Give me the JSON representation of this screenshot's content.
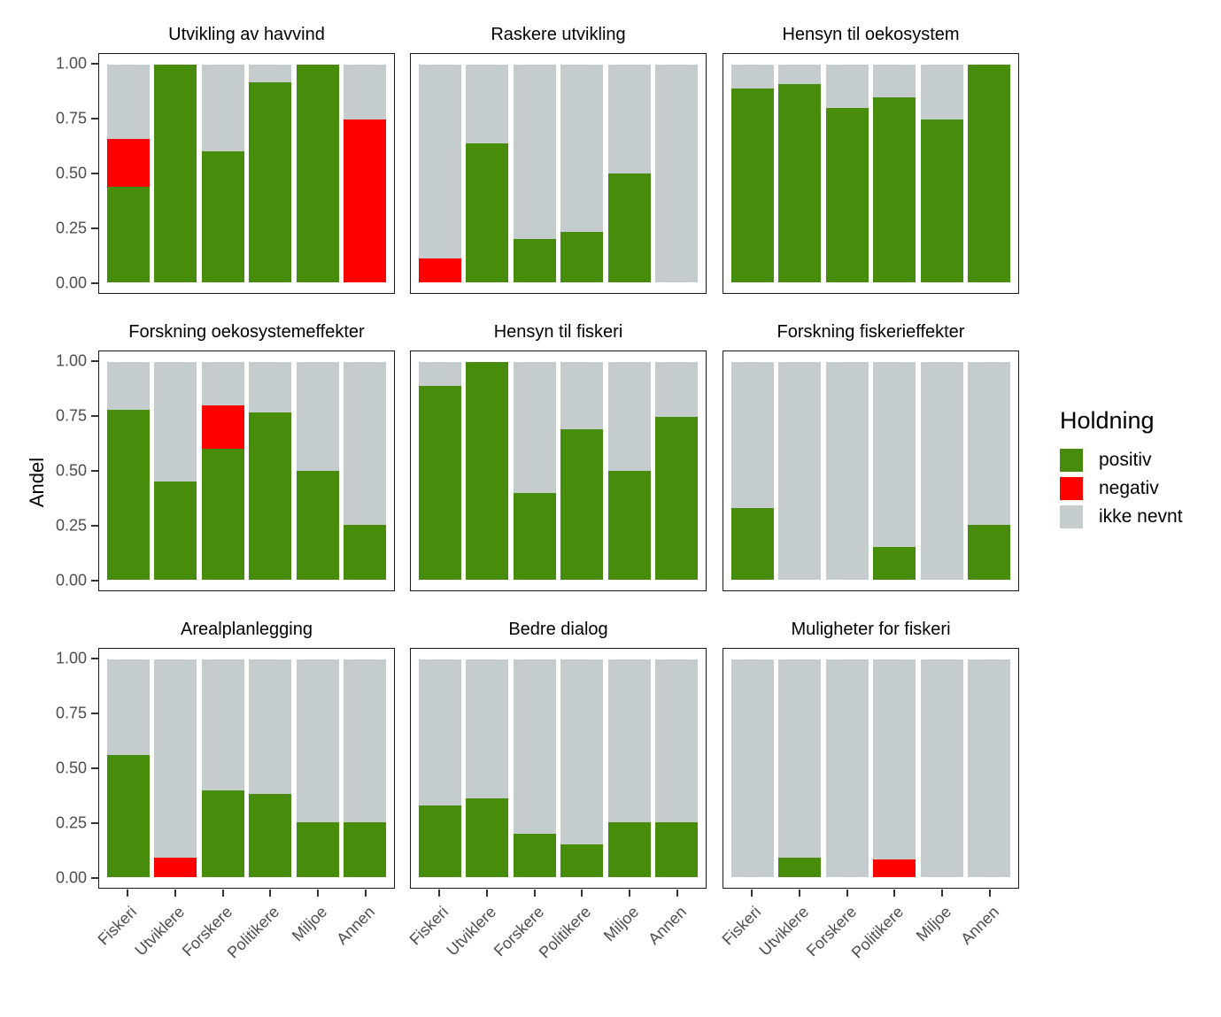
{
  "y_axis": {
    "title": "Andel",
    "ticks": [
      {
        "label": "1.00",
        "value": 1.0
      },
      {
        "label": "0.75",
        "value": 0.75
      },
      {
        "label": "0.50",
        "value": 0.5
      },
      {
        "label": "0.25",
        "value": 0.25
      },
      {
        "label": "0.00",
        "value": 0.0
      }
    ]
  },
  "legend": {
    "title": "Holdning",
    "items": [
      {
        "label": "positiv",
        "color": "#478C0B"
      },
      {
        "label": "negativ",
        "color": "#FF0000"
      },
      {
        "label": "ikke nevnt",
        "color": "#C4CCCD"
      }
    ]
  },
  "chart_data": {
    "type": "bar",
    "stacked": true,
    "grid": false,
    "legend_position": "right",
    "ylim": [
      0,
      1
    ],
    "ylabel": "Andel",
    "xlabel": "",
    "categories": [
      "Fiskeri",
      "Utviklere",
      "Forskere",
      "Politikere",
      "Miljoe",
      "Annen"
    ],
    "series_names": [
      "positiv",
      "negativ",
      "ikke nevnt"
    ],
    "colors": {
      "positiv": "#478C0B",
      "negativ": "#FF0000",
      "ikke_nevnt": "#C4CCCD"
    },
    "facets": [
      {
        "title": "Utvikling av havvind",
        "positiv": [
          0.44,
          1.0,
          0.6,
          0.92,
          1.0,
          0.0
        ],
        "negativ": [
          0.22,
          0.0,
          0.0,
          0.0,
          0.0,
          0.75
        ],
        "ikke_nevnt": [
          0.34,
          0.0,
          0.4,
          0.08,
          0.0,
          0.25
        ]
      },
      {
        "title": "Raskere utvikling",
        "positiv": [
          0.0,
          0.64,
          0.2,
          0.23,
          0.5,
          0.0
        ],
        "negativ": [
          0.11,
          0.0,
          0.0,
          0.0,
          0.0,
          0.0
        ],
        "ikke_nevnt": [
          0.89,
          0.36,
          0.8,
          0.77,
          0.5,
          1.0
        ]
      },
      {
        "title": "Hensyn til oekosystem",
        "positiv": [
          0.89,
          0.91,
          0.8,
          0.85,
          0.75,
          1.0
        ],
        "negativ": [
          0.0,
          0.0,
          0.0,
          0.0,
          0.0,
          0.0
        ],
        "ikke_nevnt": [
          0.11,
          0.09,
          0.2,
          0.15,
          0.25,
          0.0
        ]
      },
      {
        "title": "Forskning oekosystemeffekter",
        "positiv": [
          0.78,
          0.45,
          0.6,
          0.77,
          0.5,
          0.25
        ],
        "negativ": [
          0.0,
          0.0,
          0.2,
          0.0,
          0.0,
          0.0
        ],
        "ikke_nevnt": [
          0.22,
          0.55,
          0.2,
          0.23,
          0.5,
          0.75
        ]
      },
      {
        "title": "Hensyn til fiskeri",
        "positiv": [
          0.89,
          1.0,
          0.4,
          0.69,
          0.5,
          0.75
        ],
        "negativ": [
          0.0,
          0.0,
          0.0,
          0.0,
          0.0,
          0.0
        ],
        "ikke_nevnt": [
          0.11,
          0.0,
          0.6,
          0.31,
          0.5,
          0.25
        ]
      },
      {
        "title": "Forskning fiskerieffekter",
        "positiv": [
          0.33,
          0.0,
          0.0,
          0.15,
          0.0,
          0.25
        ],
        "negativ": [
          0.0,
          0.0,
          0.0,
          0.0,
          0.0,
          0.0
        ],
        "ikke_nevnt": [
          0.67,
          1.0,
          1.0,
          0.85,
          1.0,
          0.75
        ]
      },
      {
        "title": "Arealplanlegging",
        "positiv": [
          0.56,
          0.0,
          0.4,
          0.38,
          0.25,
          0.25
        ],
        "negativ": [
          0.0,
          0.09,
          0.0,
          0.0,
          0.0,
          0.0
        ],
        "ikke_nevnt": [
          0.44,
          0.91,
          0.6,
          0.62,
          0.75,
          0.75
        ]
      },
      {
        "title": "Bedre dialog",
        "positiv": [
          0.33,
          0.36,
          0.2,
          0.15,
          0.25,
          0.25
        ],
        "negativ": [
          0.0,
          0.0,
          0.0,
          0.0,
          0.0,
          0.0
        ],
        "ikke_nevnt": [
          0.67,
          0.64,
          0.8,
          0.85,
          0.75,
          0.75
        ]
      },
      {
        "title": "Muligheter for fiskeri",
        "positiv": [
          0.0,
          0.09,
          0.0,
          0.0,
          0.0,
          0.0
        ],
        "negativ": [
          0.0,
          0.0,
          0.0,
          0.08,
          0.0,
          0.0
        ],
        "ikke_nevnt": [
          1.0,
          0.91,
          1.0,
          0.92,
          1.0,
          1.0
        ]
      }
    ]
  }
}
